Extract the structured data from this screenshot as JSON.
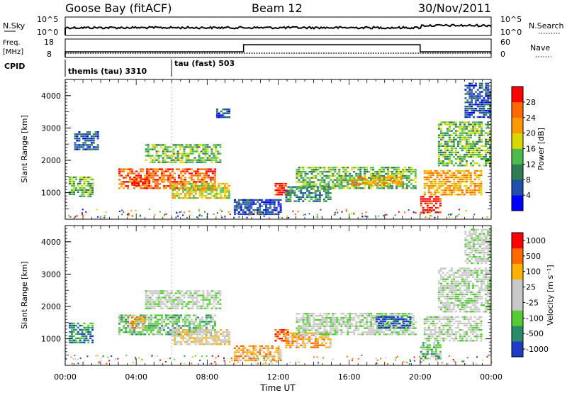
{
  "header": {
    "station": "Goose Bay (fitACF)",
    "beam": "Beam 12",
    "date": "30/Nov/2011"
  },
  "strips": {
    "nsky": {
      "label": "N.Sky",
      "right_label": "N.Search",
      "ticks": [
        "10^5",
        "10^0"
      ]
    },
    "freq": {
      "label_line1": "Freq.",
      "label_line2": "[MHz]",
      "left_ticks": [
        "18",
        "8"
      ],
      "right_label": "Nave",
      "right_ticks": [
        "60",
        "0"
      ]
    },
    "cpid": {
      "label": "CPID",
      "segments": [
        {
          "label": "themis (tau) 3310",
          "start_h": 0,
          "end_h": 6.0
        },
        {
          "label": "tau (fast) 503",
          "start_h": 6.0,
          "end_h": 24
        }
      ]
    }
  },
  "chart_data": [
    {
      "type": "heatmap",
      "name": "power",
      "ylabel": "Slant Range [km]",
      "yticks": [
        "4000",
        "3000",
        "2000",
        "1000"
      ],
      "ylim": [
        180,
        4500
      ],
      "colorbar": {
        "label": "Power [dB]",
        "ticks": [
          "28",
          "24",
          "20",
          "16",
          "12",
          "8",
          "4"
        ],
        "range": [
          0,
          32
        ],
        "colors": [
          "#0000ff",
          "#1f4fa8",
          "#2e7d55",
          "#4cbb4c",
          "#d8d800",
          "#ff9900",
          "#ff6a00",
          "#ff0000"
        ]
      },
      "regions": [
        {
          "t": [
            0.2,
            1.6
          ],
          "r": [
            850,
            1500
          ],
          "level": 3
        },
        {
          "t": [
            0.5,
            1.9
          ],
          "r": [
            2300,
            2900
          ],
          "level": 1
        },
        {
          "t": [
            3.0,
            8.5
          ],
          "r": [
            1100,
            1750
          ],
          "level": 6
        },
        {
          "t": [
            3.6,
            4.8
          ],
          "r": [
            1200,
            1500
          ],
          "level": 7
        },
        {
          "t": [
            4.5,
            8.8
          ],
          "r": [
            1900,
            2500
          ],
          "level": 3
        },
        {
          "t": [
            6.0,
            9.3
          ],
          "r": [
            800,
            1300
          ],
          "level": 4
        },
        {
          "t": [
            8.5,
            9.3
          ],
          "r": [
            3300,
            3600
          ],
          "level": 1
        },
        {
          "t": [
            9.5,
            12.2
          ],
          "r": [
            300,
            800
          ],
          "level": 1
        },
        {
          "t": [
            11.8,
            12.6
          ],
          "r": [
            900,
            1300
          ],
          "level": 7
        },
        {
          "t": [
            12.4,
            15.0
          ],
          "r": [
            700,
            1200
          ],
          "level": 2
        },
        {
          "t": [
            13.0,
            19.8
          ],
          "r": [
            1100,
            1800
          ],
          "level": 3
        },
        {
          "t": [
            16.0,
            19.0
          ],
          "r": [
            1200,
            1500
          ],
          "level": 5
        },
        {
          "t": [
            20.0,
            21.2
          ],
          "r": [
            350,
            900
          ],
          "level": 7
        },
        {
          "t": [
            20.2,
            23.5
          ],
          "r": [
            900,
            1700
          ],
          "level": 5
        },
        {
          "t": [
            21.0,
            24.0
          ],
          "r": [
            1800,
            3200
          ],
          "level": 3
        },
        {
          "t": [
            22.5,
            24.0
          ],
          "r": [
            3300,
            4400
          ],
          "level": 1
        }
      ]
    },
    {
      "type": "heatmap",
      "name": "velocity",
      "ylabel": "Slant Range [km]",
      "yticks": [
        "4000",
        "3000",
        "2000",
        "1000"
      ],
      "ylim": [
        180,
        4500
      ],
      "colorbar": {
        "label": "Velocity [m s⁻¹]",
        "ticks": [
          "1000",
          "500",
          "100",
          "25",
          "-25",
          "-100",
          "-500",
          "-1000"
        ],
        "colors": [
          "#1f3cc8",
          "#2a8a6a",
          "#55cc33",
          "#c8c8c8",
          "#c8c8c8",
          "#ffb000",
          "#ff6a00",
          "#ff0000"
        ]
      },
      "regions": [
        {
          "t": [
            0.2,
            1.6
          ],
          "r": [
            850,
            1500
          ],
          "level": 1
        },
        {
          "t": [
            3.0,
            8.5
          ],
          "r": [
            1100,
            1750
          ],
          "level": 2
        },
        {
          "t": [
            3.5,
            4.5
          ],
          "r": [
            1300,
            1700
          ],
          "level": 5
        },
        {
          "t": [
            4.5,
            8.8
          ],
          "r": [
            1900,
            2500
          ],
          "level": 3
        },
        {
          "t": [
            6.0,
            9.3
          ],
          "r": [
            800,
            1300
          ],
          "level": 4
        },
        {
          "t": [
            9.5,
            12.2
          ],
          "r": [
            300,
            800
          ],
          "level": 5
        },
        {
          "t": [
            11.8,
            12.6
          ],
          "r": [
            900,
            1300
          ],
          "level": 6
        },
        {
          "t": [
            12.4,
            15.0
          ],
          "r": [
            700,
            1200
          ],
          "level": 5
        },
        {
          "t": [
            13.0,
            19.8
          ],
          "r": [
            1100,
            1800
          ],
          "level": 3
        },
        {
          "t": [
            17.5,
            19.5
          ],
          "r": [
            1300,
            1700
          ],
          "level": 0
        },
        {
          "t": [
            20.0,
            21.2
          ],
          "r": [
            350,
            900
          ],
          "level": 2
        },
        {
          "t": [
            20.2,
            23.5
          ],
          "r": [
            900,
            1700
          ],
          "level": 3
        },
        {
          "t": [
            21.0,
            24.0
          ],
          "r": [
            1800,
            3200
          ],
          "level": 3
        },
        {
          "t": [
            22.5,
            24.0
          ],
          "r": [
            3300,
            4400
          ],
          "level": 3
        }
      ]
    }
  ],
  "xaxis": {
    "label": "Time UT",
    "ticks": [
      "00:00",
      "04:00",
      "08:00",
      "12:00",
      "16:00",
      "20:00",
      "00:00"
    ]
  }
}
